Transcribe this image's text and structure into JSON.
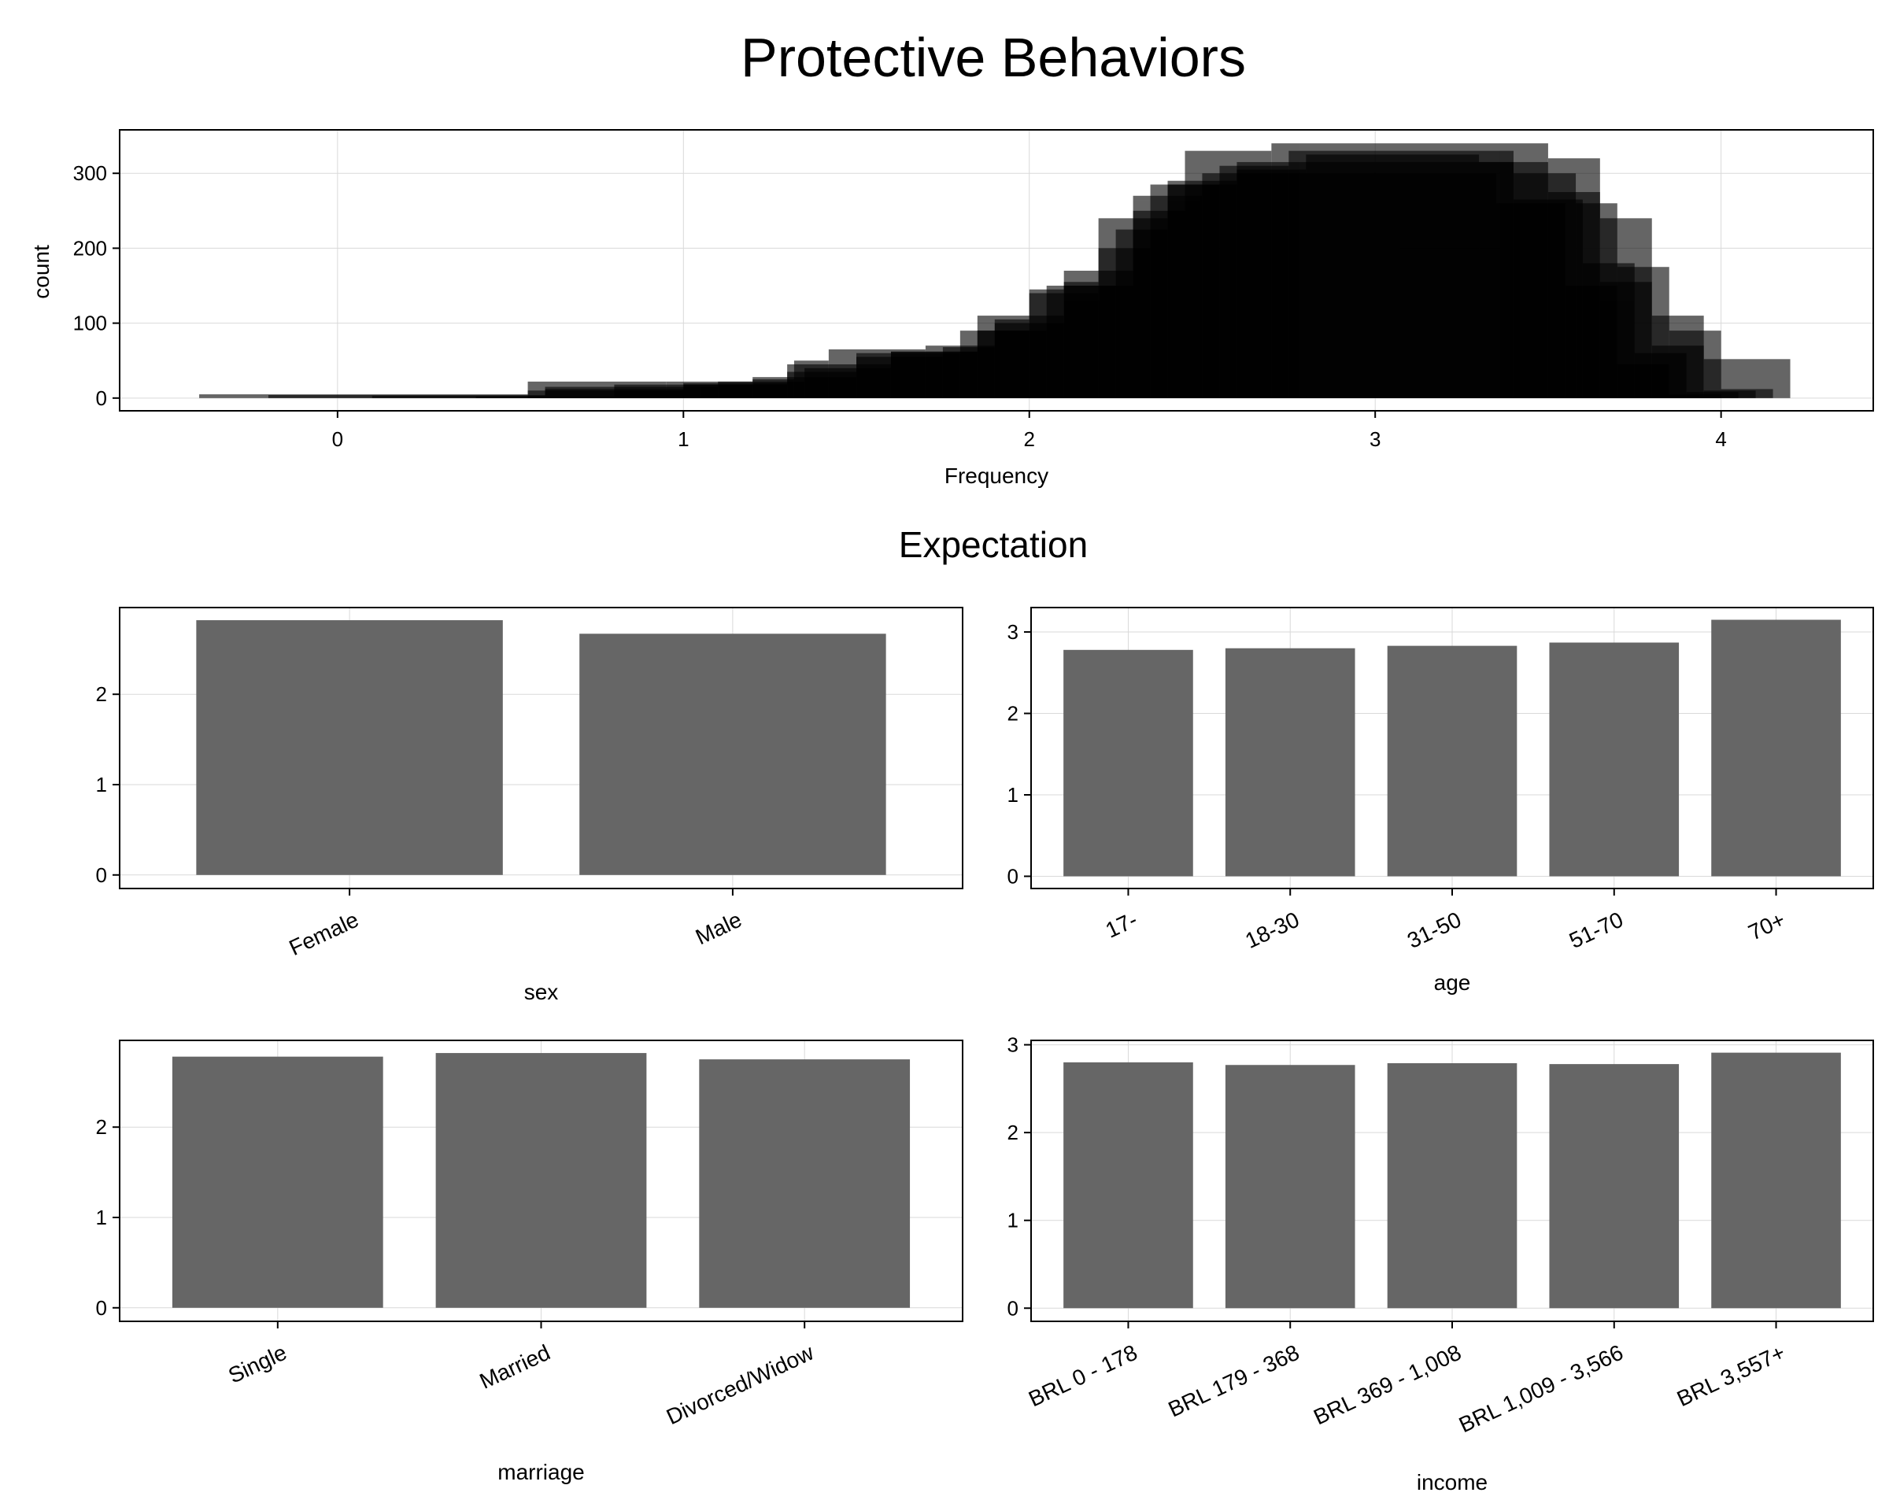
{
  "title": "Protective  Behaviors",
  "subtitle": "Expectation",
  "colors": {
    "bar": "#666666",
    "hist": "#000000",
    "background": "#ffffff"
  },
  "chart_data": [
    {
      "id": "hist",
      "type": "histogram",
      "xlabel": "Frequency",
      "ylabel": "count",
      "xlim": [
        -0.63,
        4.44
      ],
      "ylim": [
        -17,
        358
      ],
      "xticks": [
        0,
        1,
        2,
        3,
        4
      ],
      "yticks": [
        0,
        100,
        200,
        300
      ],
      "grid": true,
      "overlay_opacity": 0.6,
      "layers": [
        {
          "name": "",
          "bins": [
            [
              -0.4,
              0.55,
              5
            ],
            [
              0.55,
              0.95,
              22
            ],
            [
              0.95,
              1.2,
              22
            ],
            [
              1.2,
              1.32,
              25
            ],
            [
              1.32,
              1.42,
              50
            ],
            [
              1.42,
              1.7,
              65
            ],
            [
              1.7,
              1.9,
              70
            ],
            [
              1.9,
              2.1,
              100
            ],
            [
              2.1,
              2.3,
              150
            ],
            [
              2.3,
              2.45,
              250
            ],
            [
              2.45,
              2.7,
              330
            ],
            [
              2.7,
              3.5,
              340
            ],
            [
              3.5,
              3.65,
              320
            ],
            [
              3.65,
              3.8,
              240
            ],
            [
              3.8,
              3.95,
              110
            ],
            [
              3.95,
              4.2,
              52
            ]
          ]
        },
        {
          "name": "",
          "bins": [
            [
              -0.2,
              0.6,
              4
            ],
            [
              0.6,
              1.0,
              12
            ],
            [
              1.0,
              1.3,
              18
            ],
            [
              1.3,
              1.5,
              35
            ],
            [
              1.5,
              1.75,
              55
            ],
            [
              1.75,
              1.9,
              68
            ],
            [
              1.9,
              2.0,
              105
            ],
            [
              2.0,
              2.1,
              145
            ],
            [
              2.1,
              2.2,
              155
            ],
            [
              2.2,
              2.35,
              200
            ],
            [
              2.35,
              2.55,
              285
            ],
            [
              2.55,
              2.75,
              310
            ],
            [
              2.75,
              3.4,
              330
            ],
            [
              3.4,
              3.58,
              300
            ],
            [
              3.58,
              3.7,
              260
            ],
            [
              3.7,
              3.85,
              175
            ],
            [
              3.85,
              4.0,
              90
            ],
            [
              4.0,
              4.15,
              12
            ]
          ]
        },
        {
          "name": "",
          "bins": [
            [
              0.1,
              0.6,
              3
            ],
            [
              0.6,
              1.1,
              15
            ],
            [
              1.1,
              1.35,
              22
            ],
            [
              1.35,
              1.6,
              40
            ],
            [
              1.6,
              1.85,
              62
            ],
            [
              1.85,
              2.05,
              90
            ],
            [
              2.05,
              2.25,
              150
            ],
            [
              2.25,
              2.4,
              225
            ],
            [
              2.4,
              2.6,
              290
            ],
            [
              2.6,
              2.8,
              305
            ],
            [
              2.8,
              3.3,
              325
            ],
            [
              3.3,
              3.5,
              315
            ],
            [
              3.5,
              3.65,
              275
            ],
            [
              3.65,
              3.8,
              155
            ],
            [
              3.8,
              3.95,
              70
            ],
            [
              3.95,
              4.1,
              10
            ]
          ]
        },
        {
          "name": "",
          "bins": [
            [
              0.4,
              0.8,
              2
            ],
            [
              0.8,
              1.2,
              18
            ],
            [
              1.2,
              1.5,
              28
            ],
            [
              1.5,
              1.8,
              60
            ],
            [
              1.8,
              2.0,
              90
            ],
            [
              2.0,
              2.2,
              140
            ],
            [
              2.2,
              2.4,
              240
            ],
            [
              2.4,
              2.6,
              285
            ],
            [
              2.6,
              3.4,
              315
            ],
            [
              3.4,
              3.6,
              265
            ],
            [
              3.6,
              3.75,
              180
            ],
            [
              3.75,
              3.9,
              60
            ],
            [
              3.9,
              4.05,
              8
            ]
          ]
        },
        {
          "name": "",
          "bins": [
            [
              0.55,
              1.0,
              10
            ],
            [
              1.0,
              1.3,
              20
            ],
            [
              1.3,
              1.6,
              45
            ],
            [
              1.6,
              1.85,
              62
            ],
            [
              1.85,
              2.1,
              110
            ],
            [
              2.1,
              2.3,
              170
            ],
            [
              2.3,
              2.5,
              270
            ],
            [
              2.5,
              3.35,
              300
            ],
            [
              3.35,
              3.55,
              260
            ],
            [
              3.55,
              3.7,
              150
            ],
            [
              3.7,
              3.85,
              45
            ],
            [
              3.85,
              4.0,
              5
            ]
          ]
        }
      ]
    },
    {
      "id": "sex",
      "type": "bar",
      "xlabel": "sex",
      "categories": [
        "Female",
        "Male"
      ],
      "values": [
        2.82,
        2.67
      ],
      "ylim": [
        -0.15,
        2.96
      ],
      "yticks": [
        0,
        1,
        2
      ],
      "grid": true
    },
    {
      "id": "age",
      "type": "bar",
      "xlabel": "age",
      "categories": [
        "17-",
        "18-30",
        "31-50",
        "51-70",
        "70+"
      ],
      "values": [
        2.78,
        2.8,
        2.83,
        2.87,
        3.15
      ],
      "ylim": [
        -0.15,
        3.3
      ],
      "yticks": [
        0,
        1,
        2,
        3
      ],
      "grid": true
    },
    {
      "id": "marriage",
      "type": "bar",
      "xlabel": "marriage",
      "categories": [
        "Single",
        "Married",
        "Divorced/Widow"
      ],
      "values": [
        2.78,
        2.82,
        2.75
      ],
      "ylim": [
        -0.15,
        2.96
      ],
      "yticks": [
        0,
        1,
        2
      ],
      "grid": true
    },
    {
      "id": "income",
      "type": "bar",
      "xlabel": "income",
      "categories": [
        "BRL 0 - 178",
        "BRL 179 - 368",
        "BRL 369 - 1,008",
        "BRL 1,009 - 3,566",
        "BRL 3,557+"
      ],
      "values": [
        2.8,
        2.77,
        2.79,
        2.78,
        2.91
      ],
      "ylim": [
        -0.15,
        3.05
      ],
      "yticks": [
        0,
        1,
        2,
        3
      ],
      "grid": true
    }
  ]
}
